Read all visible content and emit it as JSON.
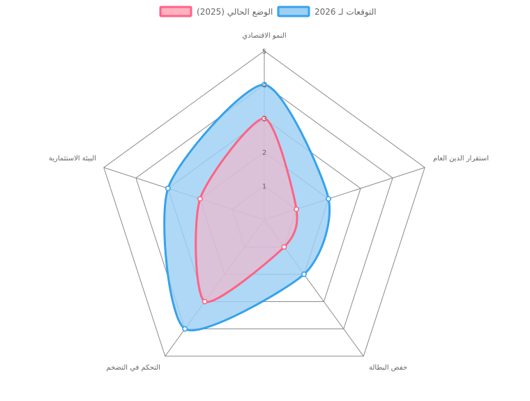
{
  "chart_data": {
    "type": "radar",
    "axes": [
      "النمو الاقتصادي",
      "استقرار الدين العام",
      "خفض البطالة",
      "التحكم في التضخم",
      "البيئة الاستثمارية"
    ],
    "ticks": [
      "1",
      "2",
      "3",
      "4",
      "5"
    ],
    "rmin": 0,
    "rmax": 5,
    "grid": true,
    "legend_position": "top-center",
    "series": [
      {
        "name": "التوقعات لـ 2026",
        "values": [
          4,
          2,
          2,
          4,
          3
        ],
        "stroke": "#36a2eb",
        "fill": "#9dd0f5"
      },
      {
        "name": "الوضع الحالي (2025)",
        "values": [
          3,
          1,
          1,
          3,
          2
        ],
        "stroke": "#ff6384",
        "fill": "#ffb1c1"
      }
    ]
  }
}
